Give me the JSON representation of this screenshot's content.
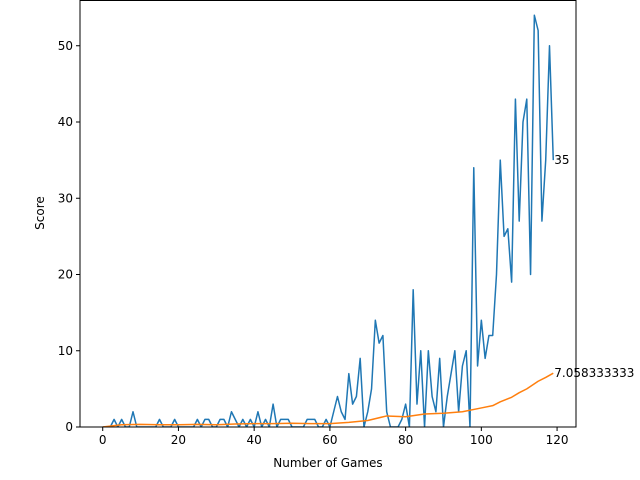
{
  "chart_data": {
    "type": "line",
    "title": "",
    "xlabel": "Number of Games",
    "ylabel": "Score",
    "xlim": [
      -6,
      125
    ],
    "ylim": [
      0,
      56
    ],
    "grid": false,
    "xticks": [
      0,
      20,
      40,
      60,
      80,
      100,
      120
    ],
    "yticks": [
      0,
      10,
      20,
      30,
      40,
      50
    ],
    "series": [
      {
        "color": "#1f77b4",
        "x": [
          0,
          1,
          2,
          3,
          4,
          5,
          6,
          7,
          8,
          9,
          10,
          11,
          12,
          13,
          14,
          15,
          16,
          17,
          18,
          19,
          20,
          21,
          22,
          23,
          24,
          25,
          26,
          27,
          28,
          29,
          30,
          31,
          32,
          33,
          34,
          35,
          36,
          37,
          38,
          39,
          40,
          41,
          42,
          43,
          44,
          45,
          46,
          47,
          48,
          49,
          50,
          51,
          52,
          53,
          54,
          55,
          56,
          57,
          58,
          59,
          60,
          61,
          62,
          63,
          64,
          65,
          66,
          67,
          68,
          69,
          70,
          71,
          72,
          73,
          74,
          75,
          76,
          77,
          78,
          79,
          80,
          81,
          82,
          83,
          84,
          85,
          86,
          87,
          88,
          89,
          90,
          91,
          92,
          93,
          94,
          95,
          96,
          97,
          98,
          99,
          100,
          101,
          102,
          103,
          104,
          105,
          106,
          107,
          108,
          109,
          110,
          111,
          112,
          113,
          114,
          115,
          116,
          117,
          118,
          119
        ],
        "values": [
          0,
          0,
          0,
          1,
          0,
          1,
          0,
          0,
          2,
          0,
          0,
          0,
          0,
          0,
          0,
          1,
          0,
          0,
          0,
          1,
          0,
          0,
          0,
          0,
          0,
          1,
          0,
          1,
          1,
          0,
          0,
          1,
          1,
          0,
          2,
          1,
          0,
          1,
          0,
          1,
          0,
          2,
          0,
          1,
          0,
          3,
          0,
          1,
          1,
          1,
          0,
          0,
          0,
          0,
          1,
          1,
          1,
          0,
          0,
          1,
          0,
          2,
          4,
          2,
          1,
          7,
          3,
          4,
          9,
          0,
          2,
          5,
          14,
          11,
          12,
          2,
          0,
          0,
          0,
          1,
          3,
          0,
          18,
          3,
          10,
          0,
          10,
          4,
          2,
          9,
          0,
          4,
          7,
          10,
          2,
          8,
          10,
          0,
          34,
          8,
          14,
          9,
          12,
          12,
          20,
          35,
          25,
          26,
          19,
          43,
          27,
          40,
          43,
          20,
          54,
          52,
          27,
          35,
          50,
          35
        ]
      },
      {
        "color": "#ff7f0e",
        "x": [
          0,
          5,
          10,
          15,
          20,
          25,
          30,
          35,
          40,
          45,
          50,
          55,
          60,
          65,
          70,
          75,
          80,
          85,
          90,
          95,
          100,
          103,
          105,
          108,
          110,
          112,
          115,
          117,
          119
        ],
        "values": [
          0,
          0.3,
          0.35,
          0.3,
          0.3,
          0.35,
          0.3,
          0.4,
          0.45,
          0.45,
          0.5,
          0.45,
          0.45,
          0.6,
          0.85,
          1.45,
          1.35,
          1.7,
          1.8,
          2.0,
          2.5,
          2.8,
          3.3,
          3.9,
          4.5,
          5.0,
          6.0,
          6.5,
          7.058
        ]
      }
    ],
    "annotations": [
      {
        "text": "35",
        "x": 119,
        "y": 35
      },
      {
        "text": "7.058333333",
        "x": 119,
        "y": 7.058
      }
    ]
  }
}
